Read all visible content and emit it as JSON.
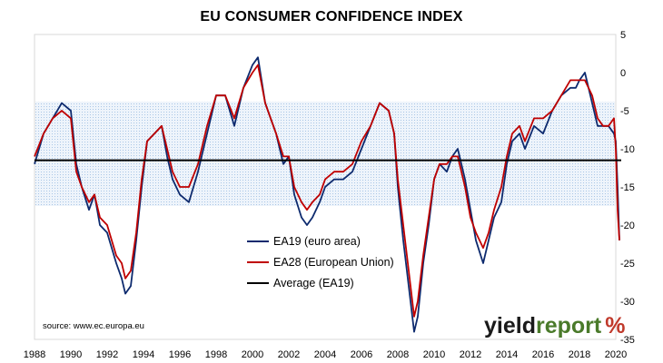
{
  "chart_data": {
    "type": "line",
    "title": "EU CONSUMER CONFIDENCE INDEX",
    "xlim": [
      1988,
      2020
    ],
    "ylim": [
      -35,
      5
    ],
    "x_ticks": [
      "1988",
      "1990",
      "1992",
      "1994",
      "1996",
      "1998",
      "2000",
      "2002",
      "2004",
      "2006",
      "2008",
      "2010",
      "2012",
      "2014",
      "2016",
      "2018",
      "2020"
    ],
    "y_ticks": [
      "5",
      "0",
      "-5",
      "-10",
      "-15",
      "-20",
      "-25",
      "-30",
      "-35"
    ],
    "shaded_band": {
      "from": -17.5,
      "to": -3.8
    },
    "average": -11.5,
    "grid": false,
    "legend_position": "bottom-center",
    "series": [
      {
        "name": "EA19 (euro area)",
        "color": "#0d2a6e",
        "x": [
          1988.0,
          1988.5,
          1989.0,
          1989.5,
          1990.0,
          1990.3,
          1990.6,
          1991.0,
          1991.3,
          1991.6,
          1992.0,
          1992.5,
          1992.8,
          1993.0,
          1993.3,
          1993.6,
          1993.9,
          1994.2,
          1994.6,
          1995.0,
          1995.3,
          1995.6,
          1996.0,
          1996.5,
          1997.0,
          1997.5,
          1998.0,
          1998.5,
          1999.0,
          1999.5,
          2000.0,
          2000.3,
          2000.7,
          2001.0,
          2001.3,
          2001.7,
          2002.0,
          2002.3,
          2002.7,
          2003.0,
          2003.3,
          2003.7,
          2004.0,
          2004.5,
          2005.0,
          2005.5,
          2006.0,
          2006.5,
          2007.0,
          2007.5,
          2007.8,
          2008.0,
          2008.3,
          2008.6,
          2008.9,
          2009.1,
          2009.4,
          2009.7,
          2010.0,
          2010.3,
          2010.7,
          2011.0,
          2011.3,
          2011.7,
          2012.0,
          2012.3,
          2012.7,
          2013.0,
          2013.3,
          2013.7,
          2014.0,
          2014.3,
          2014.7,
          2015.0,
          2015.5,
          2016.0,
          2016.5,
          2017.0,
          2017.5,
          2017.8,
          2018.0,
          2018.3,
          2018.7,
          2019.0,
          2019.3,
          2019.6,
          2019.9,
          2020.0,
          2020.1,
          2020.2
        ],
        "y": [
          -12,
          -8,
          -6,
          -4,
          -5,
          -12,
          -15,
          -18,
          -16,
          -20,
          -21,
          -25,
          -27,
          -29,
          -28,
          -22,
          -15,
          -9,
          -8,
          -7,
          -11,
          -14,
          -16,
          -17,
          -13,
          -8,
          -3,
          -3,
          -7,
          -2,
          1,
          2,
          -4,
          -6,
          -8,
          -12,
          -11,
          -16,
          -19,
          -20,
          -19,
          -17,
          -15,
          -14,
          -14,
          -13,
          -10,
          -7,
          -4,
          -5,
          -8,
          -15,
          -22,
          -28,
          -34,
          -32,
          -25,
          -20,
          -14,
          -12,
          -13,
          -11,
          -10,
          -14,
          -18,
          -22,
          -25,
          -22,
          -19,
          -17,
          -12,
          -9,
          -8,
          -10,
          -7,
          -8,
          -5,
          -3,
          -2,
          -2,
          -1,
          0,
          -4,
          -7,
          -7,
          -7,
          -8,
          -9,
          -15,
          -22
        ]
      },
      {
        "name": "EA28 (European Union)",
        "color": "#c00000",
        "x": [
          1988.0,
          1988.5,
          1989.0,
          1989.5,
          1990.0,
          1990.3,
          1990.6,
          1991.0,
          1991.3,
          1991.6,
          1992.0,
          1992.5,
          1992.8,
          1993.0,
          1993.3,
          1993.6,
          1993.9,
          1994.2,
          1994.6,
          1995.0,
          1995.3,
          1995.6,
          1996.0,
          1996.5,
          1997.0,
          1997.5,
          1998.0,
          1998.5,
          1999.0,
          1999.5,
          2000.0,
          2000.3,
          2000.7,
          2001.0,
          2001.3,
          2001.7,
          2002.0,
          2002.3,
          2002.7,
          2003.0,
          2003.3,
          2003.7,
          2004.0,
          2004.5,
          2005.0,
          2005.5,
          2006.0,
          2006.5,
          2007.0,
          2007.5,
          2007.8,
          2008.0,
          2008.3,
          2008.6,
          2008.9,
          2009.1,
          2009.4,
          2009.7,
          2010.0,
          2010.3,
          2010.7,
          2011.0,
          2011.3,
          2011.7,
          2012.0,
          2012.3,
          2012.7,
          2013.0,
          2013.3,
          2013.7,
          2014.0,
          2014.3,
          2014.7,
          2015.0,
          2015.5,
          2016.0,
          2016.5,
          2017.0,
          2017.5,
          2017.8,
          2018.0,
          2018.3,
          2018.7,
          2019.0,
          2019.3,
          2019.6,
          2019.9,
          2020.0,
          2020.1,
          2020.2
        ],
        "y": [
          -11,
          -8,
          -6,
          -5,
          -6,
          -13,
          -15,
          -17,
          -16,
          -19,
          -20,
          -24,
          -25,
          -27,
          -26,
          -21,
          -14,
          -9,
          -8,
          -7,
          -10,
          -13,
          -15,
          -15,
          -12,
          -7,
          -3,
          -3,
          -6,
          -2,
          0,
          1,
          -4,
          -6,
          -8,
          -11,
          -11,
          -15,
          -17,
          -18,
          -17,
          -16,
          -14,
          -13,
          -13,
          -12,
          -9,
          -7,
          -4,
          -5,
          -8,
          -14,
          -20,
          -26,
          -32,
          -30,
          -24,
          -19,
          -14,
          -12,
          -12,
          -11,
          -11,
          -15,
          -19,
          -21,
          -23,
          -21,
          -18,
          -15,
          -11,
          -8,
          -7,
          -9,
          -6,
          -6,
          -5,
          -3,
          -1,
          -1,
          -1,
          -1,
          -3,
          -6,
          -7,
          -7,
          -6,
          -10,
          -18,
          -22
        ]
      },
      {
        "name": "Average (EA19)",
        "color": "#000000",
        "x": [
          1988,
          2020.3
        ],
        "y": [
          -11.5,
          -11.5
        ]
      }
    ]
  },
  "source_note": "source: www.ec.europa.eu",
  "logo": {
    "part1": "yield",
    "part2": "report",
    "part3": "%"
  }
}
